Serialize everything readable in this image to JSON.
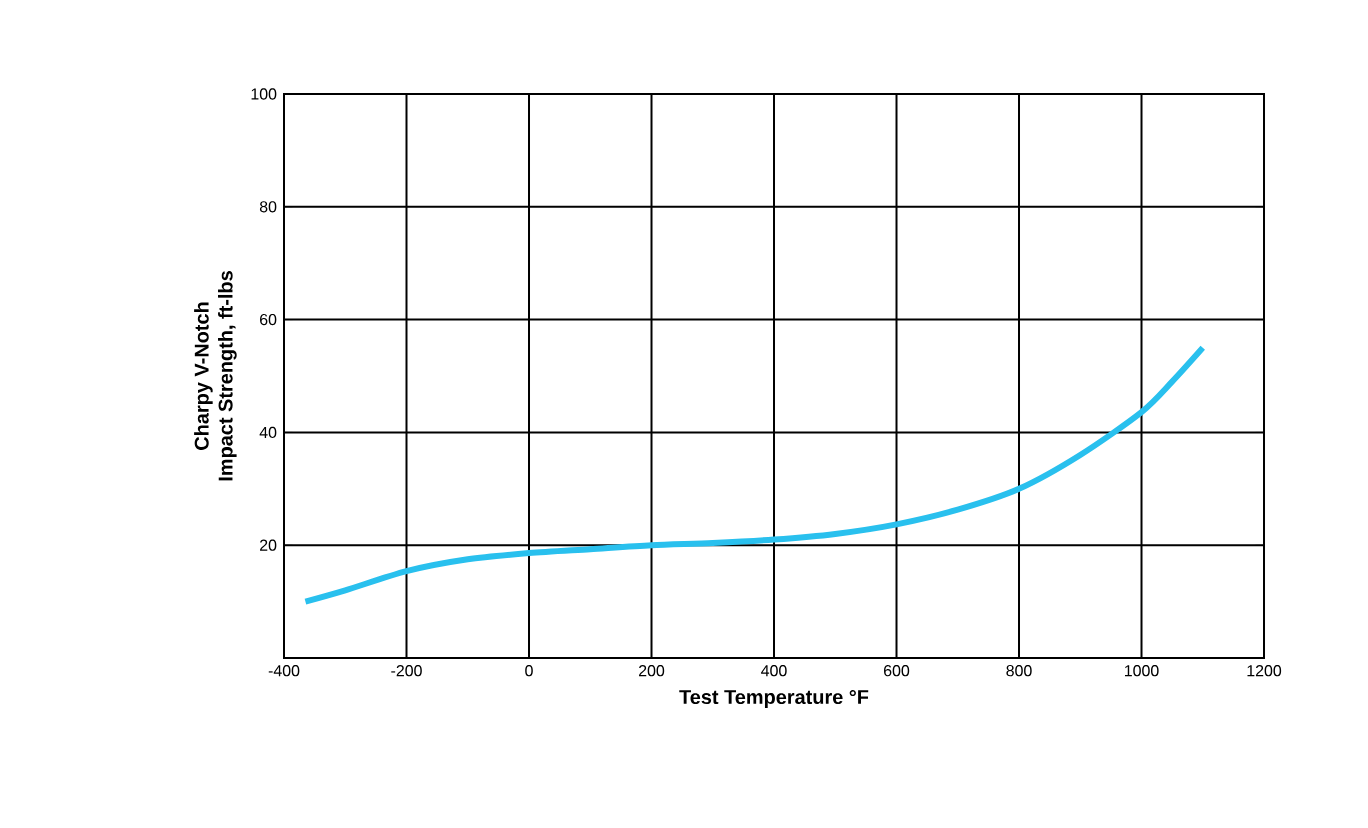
{
  "chart_data": {
    "type": "line",
    "xlabel": "Test Temperature °F",
    "ylabel": "Charpy V-Notch\nImpact Strength, ft-lbs",
    "x": [
      -365,
      -300,
      -200,
      -100,
      0,
      100,
      200,
      300,
      400,
      500,
      600,
      700,
      800,
      900,
      1000,
      1050,
      1100
    ],
    "series": [
      {
        "color": "#29c0ee",
        "values": [
          10,
          12,
          15.4,
          17.5,
          18.6,
          19.3,
          20,
          20.4,
          21,
          22,
          23.7,
          26.3,
          30,
          36,
          43.6,
          49,
          55
        ]
      }
    ],
    "xlim": [
      -400,
      1200
    ],
    "xticks": [
      -400,
      -200,
      0,
      200,
      400,
      600,
      800,
      1000,
      1200
    ],
    "ylim": [
      0,
      100
    ],
    "yticks": [
      {
        "value": 0,
        "label": null
      },
      20,
      40,
      60,
      80,
      100
    ],
    "grid": true,
    "marker": "none",
    "line_style": "solid"
  }
}
